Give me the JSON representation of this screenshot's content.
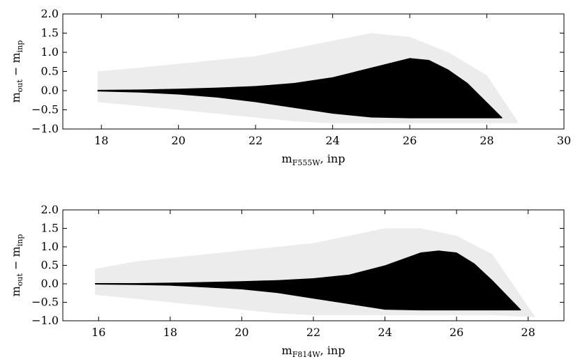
{
  "chart_data": [
    {
      "type": "band",
      "xlabel": [
        "m",
        "F555W",
        ", inp"
      ],
      "ylabel": [
        "m",
        "out",
        " − m",
        "inp"
      ],
      "xlim": [
        17,
        30
      ],
      "ylim": [
        -1.0,
        2.0
      ],
      "xticks": [
        18,
        20,
        22,
        24,
        26,
        28,
        30
      ],
      "yticks": [
        {
          "value": -1.0,
          "label": "−1.0"
        },
        {
          "value": -0.5,
          "label": "−0.5"
        },
        {
          "value": 0.0,
          "label": "0.0"
        },
        {
          "value": 0.5,
          "label": "0.5"
        },
        {
          "value": 1.0,
          "label": "1.0"
        },
        {
          "value": 1.5,
          "label": "1.5"
        },
        {
          "value": 2.0,
          "label": "2.0"
        }
      ],
      "series": [
        {
          "color": "#ececec",
          "x": [
            17.9,
            19,
            20,
            21,
            22,
            23,
            24,
            25,
            26,
            27,
            28,
            28.8
          ],
          "upper": [
            0.5,
            0.6,
            0.7,
            0.8,
            0.9,
            1.1,
            1.3,
            1.5,
            1.4,
            1.0,
            0.4,
            -0.8
          ],
          "lower": [
            -0.3,
            -0.4,
            -0.5,
            -0.6,
            -0.7,
            -0.8,
            -0.85,
            -0.85,
            -0.85,
            -0.85,
            -0.85,
            -0.85
          ]
        },
        {
          "color": "#000000",
          "x": [
            17.9,
            19,
            20,
            21,
            22,
            23,
            24,
            25,
            26,
            26.5,
            27,
            27.5,
            28,
            28.4
          ],
          "upper": [
            0.02,
            0.03,
            0.05,
            0.08,
            0.12,
            0.2,
            0.35,
            0.6,
            0.85,
            0.8,
            0.55,
            0.2,
            -0.3,
            -0.7
          ],
          "lower": [
            -0.02,
            -0.05,
            -0.1,
            -0.18,
            -0.3,
            -0.45,
            -0.6,
            -0.7,
            -0.72,
            -0.72,
            -0.72,
            -0.72,
            -0.72,
            -0.72
          ]
        }
      ]
    },
    {
      "type": "band",
      "xlabel": [
        "m",
        "F814W",
        ", inp"
      ],
      "ylabel": [
        "m",
        "out",
        " − m",
        "inp"
      ],
      "xlim": [
        15,
        29
      ],
      "ylim": [
        -1.0,
        2.0
      ],
      "xticks": [
        16,
        18,
        20,
        22,
        24,
        26,
        28
      ],
      "yticks": [
        {
          "value": -1.0,
          "label": "−1.0"
        },
        {
          "value": -0.5,
          "label": "−0.5"
        },
        {
          "value": 0.0,
          "label": "0.0"
        },
        {
          "value": 0.5,
          "label": "0.5"
        },
        {
          "value": 1.0,
          "label": "1.0"
        },
        {
          "value": 1.5,
          "label": "1.5"
        },
        {
          "value": 2.0,
          "label": "2.0"
        }
      ],
      "series": [
        {
          "color": "#ececec",
          "x": [
            15.9,
            17,
            18,
            19,
            20,
            21,
            22,
            23,
            24,
            25,
            26,
            27,
            28.2
          ],
          "upper": [
            0.4,
            0.6,
            0.7,
            0.8,
            0.9,
            1.0,
            1.1,
            1.3,
            1.5,
            1.5,
            1.3,
            0.8,
            -0.9
          ],
          "lower": [
            -0.3,
            -0.4,
            -0.5,
            -0.6,
            -0.7,
            -0.8,
            -0.85,
            -0.85,
            -0.85,
            -0.85,
            -0.85,
            -0.85,
            -0.9
          ]
        },
        {
          "color": "#000000",
          "x": [
            15.9,
            17,
            18,
            19,
            20,
            21,
            22,
            23,
            24,
            25,
            25.5,
            26,
            26.5,
            27,
            27.5,
            27.8
          ],
          "upper": [
            0.02,
            0.02,
            0.03,
            0.05,
            0.07,
            0.1,
            0.15,
            0.25,
            0.5,
            0.85,
            0.9,
            0.85,
            0.55,
            0.1,
            -0.4,
            -0.7
          ],
          "lower": [
            -0.02,
            -0.03,
            -0.05,
            -0.1,
            -0.15,
            -0.25,
            -0.4,
            -0.55,
            -0.7,
            -0.72,
            -0.72,
            -0.72,
            -0.72,
            -0.72,
            -0.72,
            -0.72
          ]
        }
      ]
    }
  ]
}
